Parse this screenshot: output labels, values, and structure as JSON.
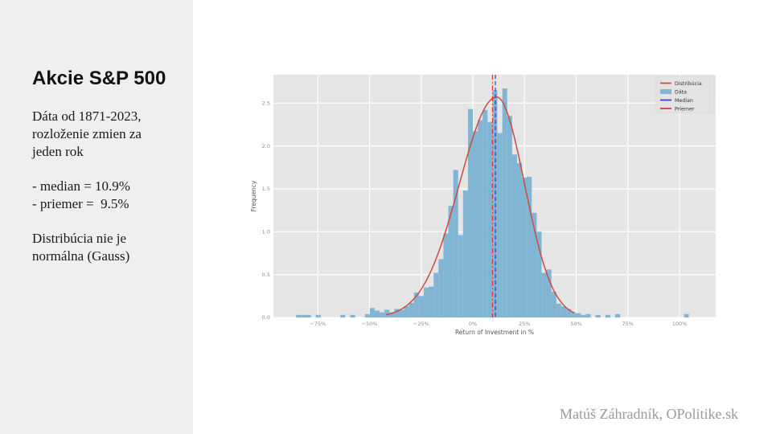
{
  "slide": {
    "title": "Akcie S&P 500",
    "body": [
      {
        "lines": [
          "Dáta od 1871-2023,",
          "rozloženie zmien za",
          "jeden rok"
        ]
      },
      {
        "lines": [
          "- median = 10.9%",
          "- priemer =  9.5%"
        ]
      },
      {
        "lines": [
          "Distribúcia nie je",
          "normálna (Gauss)"
        ]
      }
    ],
    "attribution": "Matúš Záhradník, OPolitike.sk"
  },
  "chart_data": {
    "type": "bar",
    "subtype": "histogram",
    "title": "",
    "xlabel": "Return of Investment in %",
    "ylabel": "Frequency",
    "xlim": [
      -96.5,
      117.5
    ],
    "ylim": [
      0,
      2.83
    ],
    "grid": true,
    "legend_position": "upper right",
    "x_ticks": [
      {
        "v": -75,
        "label": "−75%"
      },
      {
        "v": -50,
        "label": "−50%"
      },
      {
        "v": -25,
        "label": "−25%"
      },
      {
        "v": 0,
        "label": "0%"
      },
      {
        "v": 25,
        "label": "25%"
      },
      {
        "v": 50,
        "label": "50%"
      },
      {
        "v": 75,
        "label": "75%"
      },
      {
        "v": 100,
        "label": "100%"
      }
    ],
    "y_ticks": [
      {
        "v": 0.0,
        "label": "0.0"
      },
      {
        "v": 0.5,
        "label": "0.5"
      },
      {
        "v": 1.0,
        "label": "1.0"
      },
      {
        "v": 1.5,
        "label": "1.5"
      },
      {
        "v": 2.0,
        "label": "2.0"
      },
      {
        "v": 2.5,
        "label": "2.5"
      }
    ],
    "colors": {
      "bar": "#82b4d3",
      "curve": "#cd4b3d",
      "median": "#3939cf",
      "mean": "#e03030",
      "plot_bg": "#e5e5e5",
      "grid": "#ffffff",
      "tick": "#8c8c8c",
      "axis_label": "#555555",
      "legend_text": "#333333"
    },
    "bins": {
      "start": -85.5,
      "width": 2.375,
      "heights": [
        0.03,
        0.03,
        0.03,
        0,
        0.03,
        0,
        0,
        0,
        0,
        0.03,
        0,
        0.03,
        0,
        0,
        0.04,
        0.11,
        0.08,
        0.06,
        0.09,
        0.06,
        0.1,
        0.09,
        0.13,
        0.17,
        0.29,
        0.25,
        0.35,
        0.36,
        0.52,
        0.68,
        0.98,
        1.3,
        1.72,
        0.96,
        1.48,
        2.43,
        2.17,
        2.3,
        2.42,
        2.28,
        2.65,
        2.15,
        2.67,
        2.35,
        1.9,
        1.8,
        1.63,
        1.64,
        1.22,
        1.0,
        0.52,
        0.56,
        0.3,
        0.16,
        0.13,
        0.1,
        0.06,
        0.05,
        0.03,
        0.04,
        0,
        0.03,
        0,
        0.03,
        0,
        0.04,
        0,
        0,
        0,
        0,
        0,
        0,
        0,
        0,
        0,
        0,
        0,
        0,
        0,
        0.04
      ]
    },
    "fit_curve": {
      "peak_x": 11.5,
      "peak_y": 2.57,
      "sigma_left": 18.0,
      "sigma_right": 13.5,
      "x_range": [
        -42,
        49
      ]
    },
    "median_line": {
      "x": 10.9,
      "style": "dashed"
    },
    "mean_line": {
      "x": 9.5,
      "style": "dashdot"
    },
    "legend": [
      {
        "label": "Distribúcia",
        "swatch": "line",
        "color": "#cd4b3d"
      },
      {
        "label": "Dáta",
        "swatch": "patch",
        "color": "#82b4d3"
      },
      {
        "label": "Median",
        "swatch": "line",
        "color": "#3939cf"
      },
      {
        "label": "Priemer",
        "swatch": "line",
        "color": "#e03030"
      }
    ]
  }
}
